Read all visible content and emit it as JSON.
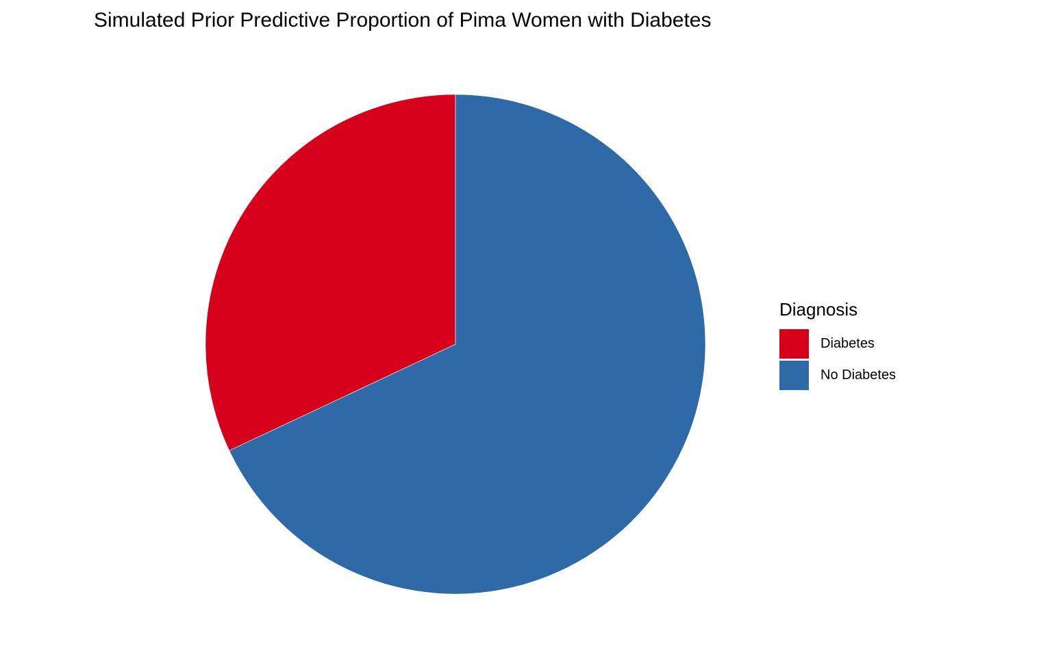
{
  "chart_data": {
    "type": "pie",
    "title": "Simulated Prior Predictive Proportion of Pima Women with Diabetes",
    "legend": {
      "title": "Diagnosis",
      "placement": "right"
    },
    "slices": [
      {
        "label": "Diabetes",
        "value": 0.32,
        "color": "#d7001a"
      },
      {
        "label": "No Diabetes",
        "value": 0.68,
        "color": "#2e6aa8"
      }
    ],
    "grid": false
  }
}
